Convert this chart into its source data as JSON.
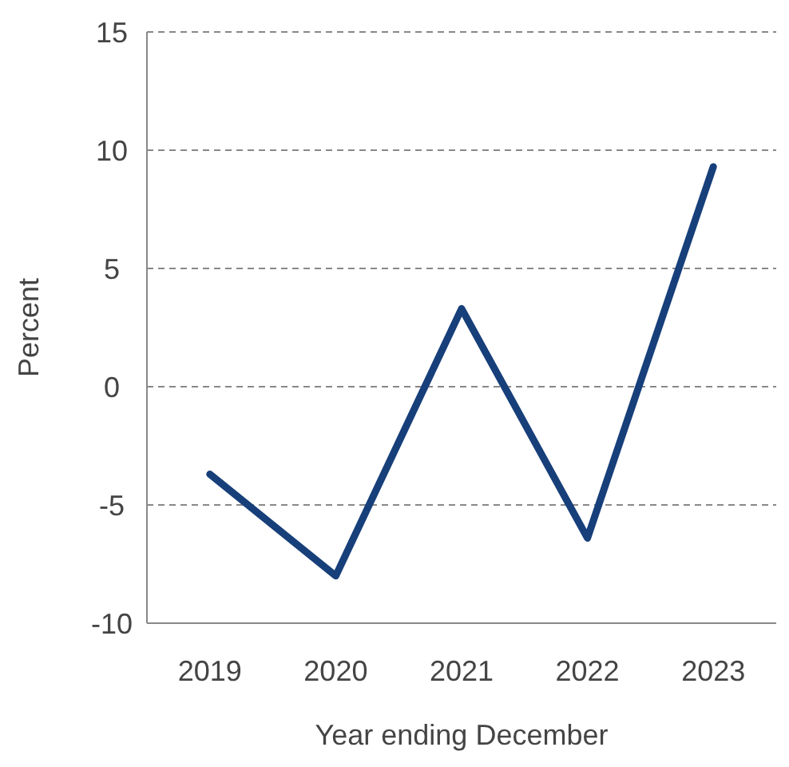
{
  "chart_data": {
    "type": "line",
    "xlabel": "Year ending December",
    "ylabel": "Percent",
    "categories": [
      "2019",
      "2020",
      "2021",
      "2022",
      "2023"
    ],
    "series": [
      {
        "color": "#173f7a",
        "values": [
          -3.7,
          -8.0,
          3.3,
          -6.4,
          9.3
        ]
      }
    ],
    "ylim": [
      -10,
      15
    ],
    "yticks": [
      -10,
      -5,
      0,
      5,
      10,
      15
    ],
    "grid": "y",
    "line_style": "solid",
    "marker": "none"
  }
}
